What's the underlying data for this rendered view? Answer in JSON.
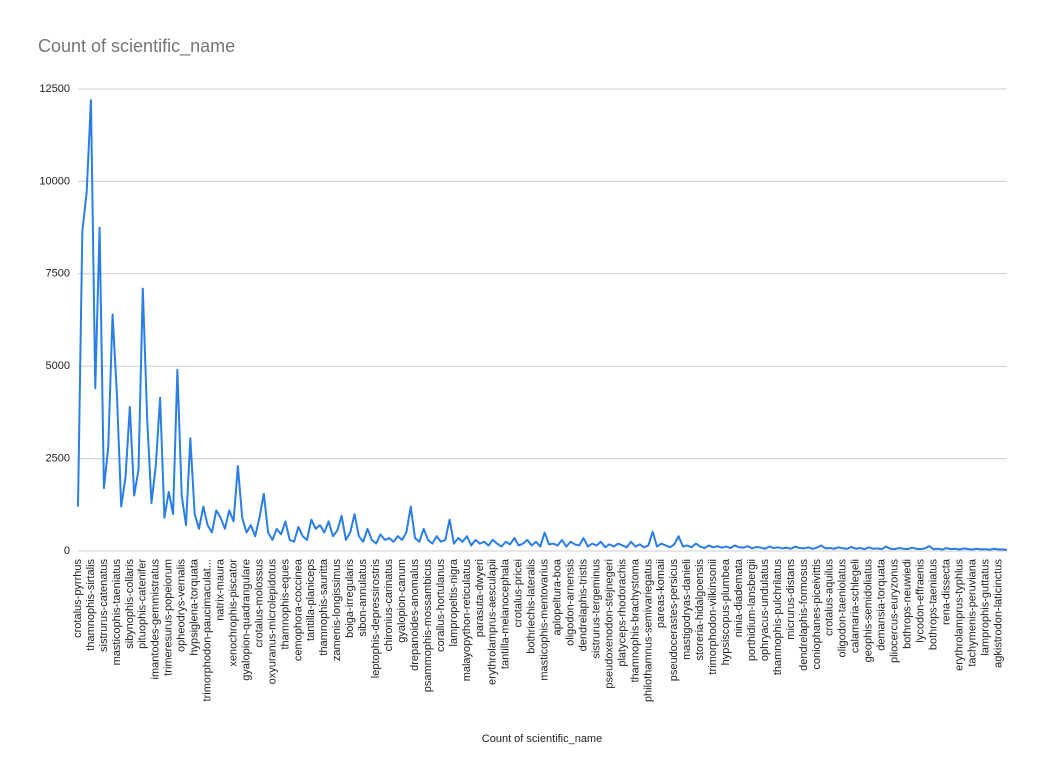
{
  "chart_data": {
    "type": "line",
    "title": "Count of scientific_name",
    "x_label": "Count of scientific_name",
    "categories": [
      "crotalus-pyrrhus",
      null,
      null,
      "thamnophis-sirtalis",
      null,
      null,
      "sistrurus-catenatus",
      null,
      null,
      "masticophis-taeniatus",
      null,
      null,
      "sibynophis-collaris",
      null,
      null,
      "pituophis-catenifer",
      null,
      null,
      "imantodes-gemmistratus",
      null,
      null,
      "trimeresurus-popeiorum",
      null,
      null,
      "opheodrys-vernalis",
      null,
      null,
      "hypsiglena-torquata",
      null,
      null,
      "trimorphodon-paucimaculat...",
      null,
      null,
      "natrix-maura",
      null,
      null,
      "xenochrophis-piscator",
      null,
      null,
      "gyalopion-quadrangulare",
      null,
      null,
      "crotalus-molossus",
      null,
      null,
      "oxyuranus-microlepidotus",
      null,
      null,
      "thamnophis-eques",
      null,
      null,
      "cemophora-coccinea",
      null,
      null,
      "tantilla-planiceps",
      null,
      null,
      "thamnophis-sauritta",
      null,
      null,
      "zamenis-longissimus",
      null,
      null,
      "boiga-irregularis",
      null,
      null,
      "sibon-annulatus",
      null,
      null,
      "leptophis-depressirostris",
      null,
      null,
      "chironius-carinatus",
      null,
      null,
      "gyalopion-canum",
      null,
      null,
      "drepanoides-anomalus",
      null,
      null,
      "psammophis-mossambicus",
      null,
      null,
      "corallus-hortulanus",
      null,
      null,
      "lampropeltis-nigra",
      null,
      null,
      "malayopython-reticulatus",
      null,
      null,
      "parasuta-dwyeri",
      null,
      null,
      "erythrolamprus-aesculapii",
      null,
      null,
      "tantilla-melanocephala",
      null,
      null,
      "crotalus-pricei",
      null,
      null,
      "bothriechis-lateralis",
      null,
      null,
      "masticophis-mentovarius",
      null,
      null,
      "aplopeltura-boa",
      null,
      null,
      "oligodon-arnensis",
      null,
      null,
      "dendrelaphis-tristis",
      null,
      null,
      "sistrurus-tergeminus",
      null,
      null,
      "pseudoxenodon-stejnegeri",
      null,
      null,
      "platyceps-rhodorachis",
      null,
      null,
      "thamnophis-brachystoma",
      null,
      null,
      "philothamnus-semivariegatus",
      null,
      null,
      "pareas-komaii",
      null,
      null,
      "pseudocerastes-persicus",
      null,
      null,
      "mastigodryas-danieli",
      null,
      null,
      "storeria-hidalgoensis",
      null,
      null,
      "trimorphodon-vilkinsonii",
      null,
      null,
      "hypsiscopus-plumbea",
      null,
      null,
      "ninia-diademata",
      null,
      null,
      "porthidium-lansbergii",
      null,
      null,
      "ophryacus-undulatus",
      null,
      null,
      "thamnophis-pulchrilatus",
      null,
      null,
      "micrurus-distans",
      null,
      null,
      "dendrelaphis-formosus",
      null,
      null,
      "coniophanes-piceivittis",
      null,
      null,
      "crotalus-aquilus",
      null,
      null,
      "oligodon-taeniolatus",
      null,
      null,
      "calamaria-schlegeli",
      null,
      null,
      "geophis-semidoliatus",
      null,
      null,
      "demansia-torquata",
      null,
      null,
      "pliocercus-euryzonus",
      null,
      null,
      "bothrops-neuwiedi",
      null,
      null,
      "lycodon-effraenis",
      null,
      null,
      "bothrops-taeniatus",
      null,
      null,
      "rena-dissecta",
      null,
      null,
      "erythrolamprus-typhlus",
      null,
      null,
      "tachymenis-peruviana",
      null,
      null,
      "lamprophis-guttatus",
      null,
      null,
      "agkistrodon-laticinctus",
      null,
      null
    ],
    "values": [
      1200,
      8650,
      9700,
      12200,
      4400,
      8750,
      1700,
      2800,
      6400,
      4250,
      1200,
      2000,
      3900,
      1500,
      2200,
      7100,
      3600,
      1300,
      2300,
      4150,
      900,
      1600,
      1000,
      4900,
      1500,
      700,
      3050,
      1000,
      600,
      1200,
      700,
      500,
      1100,
      900,
      600,
      1100,
      800,
      2300,
      900,
      500,
      700,
      400,
      900,
      1550,
      500,
      300,
      600,
      450,
      800,
      300,
      250,
      650,
      400,
      300,
      850,
      600,
      700,
      500,
      800,
      400,
      550,
      950,
      300,
      500,
      1000,
      400,
      250,
      600,
      300,
      200,
      450,
      300,
      350,
      250,
      400,
      300,
      500,
      1200,
      350,
      250,
      600,
      300,
      200,
      400,
      250,
      300,
      850,
      200,
      350,
      250,
      400,
      150,
      300,
      200,
      250,
      150,
      300,
      200,
      120,
      250,
      180,
      350,
      150,
      200,
      300,
      150,
      250,
      120,
      500,
      180,
      200,
      150,
      300,
      120,
      250,
      180,
      150,
      350,
      120,
      200,
      150,
      250,
      100,
      180,
      120,
      200,
      150,
      100,
      250,
      120,
      180,
      100,
      150,
      520,
      120,
      200,
      150,
      100,
      180,
      400,
      120,
      150,
      100,
      200,
      120,
      80,
      150,
      100,
      130,
      90,
      120,
      80,
      150,
      100,
      90,
      130,
      70,
      110,
      90,
      60,
      120,
      80,
      100,
      70,
      90,
      60,
      120,
      80,
      70,
      100,
      60,
      90,
      150,
      70,
      80,
      60,
      100,
      70,
      60,
      110,
      60,
      80,
      50,
      100,
      60,
      70,
      50,
      120,
      60,
      50,
      80,
      60,
      50,
      90,
      60,
      50,
      70,
      130,
      50,
      60,
      40,
      80,
      50,
      60,
      40,
      70,
      50,
      40,
      60,
      45,
      50,
      35,
      60,
      40,
      45,
      30
    ],
    "color": "#2a7ee6",
    "ylim": [
      0,
      12500
    ],
    "yticks": [
      0,
      2500,
      5000,
      7500,
      10000,
      12500
    ],
    "grid": true
  }
}
